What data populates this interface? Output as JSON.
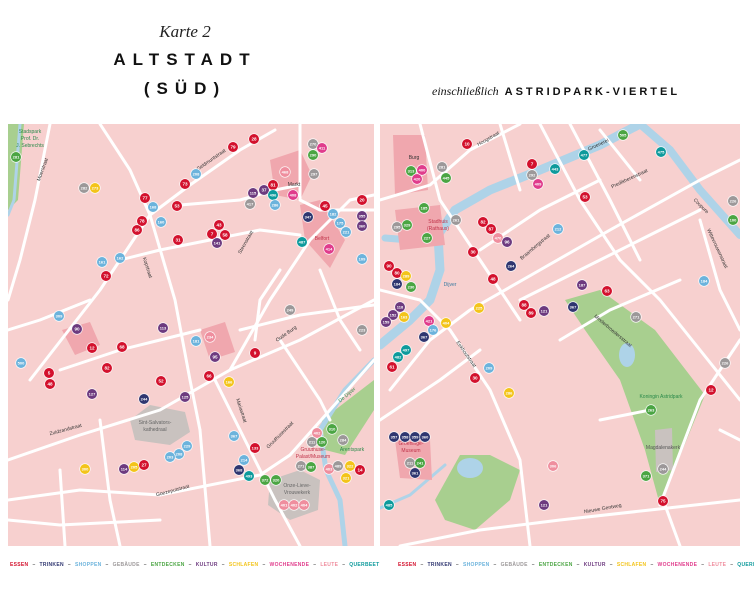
{
  "header": {
    "map_number": "Karte 2",
    "title_line1": "ALTSTADT",
    "title_line2": "(SÜD)",
    "subtitle_prefix": "einschließlich",
    "subtitle_main": "ASTRIDPARK-VIERTEL"
  },
  "colors": {
    "map_bg": "#f7d0cf",
    "road": "#ffffff",
    "water": "#aed3e8",
    "park": "#a8cf8f",
    "building": "#c9c2bf",
    "landmark": "#f0a7ae"
  },
  "categories": {
    "essen": {
      "label": "ESSEN",
      "color": "#d3112d"
    },
    "trinken": {
      "label": "TRINKEN",
      "color": "#2f3670"
    },
    "shoppen": {
      "label": "SHOPPEN",
      "color": "#6cb3dc"
    },
    "gebaeude": {
      "label": "GEBÄUDE",
      "color": "#9c9899"
    },
    "entdecken": {
      "label": "ENTDECKEN",
      "color": "#4ba543"
    },
    "kultur": {
      "label": "KULTUR",
      "color": "#6d3a7f"
    },
    "schlafen": {
      "label": "SCHLAFEN",
      "color": "#f3c41a"
    },
    "wochenende": {
      "label": "WOCHENENDE",
      "color": "#e03c8c"
    },
    "leute": {
      "label": "LEUTE",
      "color": "#ef8e9e"
    },
    "querbeet": {
      "label": "QUERBEET",
      "color": "#0e9a9c"
    }
  },
  "legend_order": [
    "essen",
    "trinken",
    "shoppen",
    "gebaeude",
    "entdecken",
    "kultur",
    "schlafen",
    "wochenende",
    "leute",
    "querbeet"
  ],
  "left_labels": [
    "Stadspark",
    "Prof. Dr.",
    "J. Sebrechts",
    "Moerstraat",
    "Geldmuntstraat",
    "Markt",
    "Belfort",
    "Kopstraat",
    "Steenstraat",
    "Oude Burg",
    "Zuidzandstraat",
    "Sint-Salvators-",
    "kathedraal",
    "Mariastraat",
    "Gruuthusestraat",
    "Gruuthuse-",
    "Palast/Museum",
    "Arentspark",
    "De Dijver",
    "Onze-Lieve-",
    "Vrouwekerk",
    "Goezeputstraat"
  ],
  "right_labels": [
    "Burg",
    "Hoogstraat",
    "Groenerei",
    "Predikherenstraat",
    "Coupure",
    "Stadhuis",
    "(Rathaus)",
    "Braambergstraat",
    "Dijver",
    "Wittevrouwenstraat",
    "Minderbroedersstraat",
    "Eekhoutstraat",
    "Koningin Astridpark",
    "Magdalenakerk",
    "Groeninge-",
    "Museum",
    "Nieuwe Gentweg"
  ],
  "left_markers": [
    [
      "281",
      "entdecken"
    ],
    [
      "79",
      "essen"
    ],
    [
      "28",
      "essen"
    ],
    [
      "270",
      "gebaeude"
    ],
    [
      "411",
      "wochenende"
    ],
    [
      "290",
      "entdecken"
    ],
    [
      "468",
      "leute"
    ],
    [
      "297",
      "gebaeude"
    ],
    [
      "73",
      "essen"
    ],
    [
      "208",
      "shoppen"
    ],
    [
      "282",
      "gebaeude"
    ],
    [
      "273",
      "schlafen"
    ],
    [
      "77",
      "essen"
    ],
    [
      "168",
      "shoppen"
    ],
    [
      "53",
      "essen"
    ],
    [
      "115",
      "kultur"
    ],
    [
      "37",
      "kultur"
    ],
    [
      "81",
      "essen"
    ],
    [
      "496",
      "querbeet"
    ],
    [
      "417",
      "gebaeude"
    ],
    [
      "286",
      "shoppen"
    ],
    [
      "408",
      "wochenende"
    ],
    [
      "45",
      "essen"
    ],
    [
      "20",
      "essen"
    ],
    [
      "347",
      "trinken"
    ],
    [
      "182",
      "shoppen"
    ],
    [
      "175",
      "shoppen"
    ],
    [
      "221",
      "shoppen"
    ],
    [
      "355",
      "kultur"
    ],
    [
      "360",
      "kultur"
    ],
    [
      "78",
      "essen"
    ],
    [
      "86",
      "essen"
    ],
    [
      "160",
      "shoppen"
    ],
    [
      "43",
      "essen"
    ],
    [
      "7",
      "essen"
    ],
    [
      "58",
      "essen"
    ],
    [
      "141",
      "kultur"
    ],
    [
      "31",
      "essen"
    ],
    [
      "487",
      "querbeet"
    ],
    [
      "414",
      "wochenende"
    ],
    [
      "109",
      "shoppen"
    ],
    [
      "161",
      "shoppen"
    ],
    [
      "162",
      "shoppen"
    ],
    [
      "72",
      "essen"
    ],
    [
      "309",
      "shoppen"
    ],
    [
      "249",
      "gebaeude"
    ],
    [
      "223",
      "gebaeude"
    ],
    [
      "90",
      "kultur"
    ],
    [
      "113",
      "kultur"
    ],
    [
      "181",
      "shoppen"
    ],
    [
      "234",
      "leute"
    ],
    [
      "12",
      "essen"
    ],
    [
      "68",
      "essen"
    ],
    [
      "500",
      "shoppen"
    ],
    [
      "5",
      "essen"
    ],
    [
      "48",
      "essen"
    ],
    [
      "82",
      "essen"
    ],
    [
      "95",
      "kultur"
    ],
    [
      "9",
      "essen"
    ],
    [
      "127",
      "kultur"
    ],
    [
      "52",
      "essen"
    ],
    [
      "66",
      "essen"
    ],
    [
      "166",
      "schlafen"
    ],
    [
      "244",
      "trinken"
    ],
    [
      "125",
      "kultur"
    ],
    [
      "367",
      "shoppen"
    ],
    [
      "133",
      "essen"
    ],
    [
      "229",
      "shoppen"
    ],
    [
      "208",
      "shoppen"
    ],
    [
      "203",
      "shoppen"
    ],
    [
      "300",
      "schlafen"
    ],
    [
      "114",
      "kultur"
    ],
    [
      "205",
      "schlafen"
    ],
    [
      "27",
      "essen"
    ],
    [
      "214",
      "shoppen"
    ],
    [
      "368",
      "trinken"
    ],
    [
      "493",
      "querbeet"
    ],
    [
      "372",
      "entdecken"
    ],
    [
      "320",
      "entdecken"
    ],
    [
      "310",
      "entdecken"
    ],
    [
      "402",
      "leute"
    ],
    [
      "284",
      "gebaeude"
    ],
    [
      "211",
      "gebaeude"
    ],
    [
      "120",
      "entdecken"
    ],
    [
      "271",
      "gebaeude"
    ],
    [
      "387",
      "entdecken"
    ],
    [
      "403",
      "leute"
    ],
    [
      "489",
      "gebaeude"
    ],
    [
      "322",
      "schlafen"
    ],
    [
      "14",
      "essen"
    ],
    [
      "321",
      "schlafen"
    ],
    [
      "401",
      "leute"
    ],
    [
      "402",
      "leute"
    ],
    [
      "404",
      "leute"
    ]
  ],
  "right_markers": [
    [
      "10",
      "essen"
    ],
    [
      "7",
      "essen"
    ],
    [
      "443",
      "querbeet"
    ],
    [
      "477",
      "querbeet"
    ],
    [
      "505",
      "entdecken"
    ],
    [
      "475",
      "querbeet"
    ],
    [
      "313",
      "entdecken"
    ],
    [
      "400",
      "wochenende"
    ],
    [
      "420",
      "wochenende"
    ],
    [
      "281",
      "gebaeude"
    ],
    [
      "445",
      "entdecken"
    ],
    [
      "292",
      "gebaeude"
    ],
    [
      "409",
      "wochenende"
    ],
    [
      "53",
      "essen"
    ],
    [
      "226",
      "gebaeude"
    ],
    [
      "100",
      "entdecken"
    ],
    [
      "185",
      "entdecken"
    ],
    [
      "261",
      "gebaeude"
    ],
    [
      "329",
      "entdecken"
    ],
    [
      "295",
      "gebaeude"
    ],
    [
      "227",
      "entdecken"
    ],
    [
      "82",
      "essen"
    ],
    [
      "87",
      "essen"
    ],
    [
      "470",
      "leute"
    ],
    [
      "96",
      "kultur"
    ],
    [
      "212",
      "shoppen"
    ],
    [
      "30",
      "essen"
    ],
    [
      "264",
      "trinken"
    ],
    [
      "48",
      "essen"
    ],
    [
      "90",
      "essen"
    ],
    [
      "80",
      "essen"
    ],
    [
      "289",
      "schlafen"
    ],
    [
      "184",
      "trinken"
    ],
    [
      "230",
      "entdecken"
    ],
    [
      "187",
      "kultur"
    ],
    [
      "63",
      "essen"
    ],
    [
      "184",
      "shoppen"
    ],
    [
      "118",
      "kultur"
    ],
    [
      "152",
      "kultur"
    ],
    [
      "163",
      "schlafen"
    ],
    [
      "159",
      "kultur"
    ],
    [
      "225",
      "schlafen"
    ],
    [
      "88",
      "essen"
    ],
    [
      "89",
      "essen"
    ],
    [
      "121",
      "kultur"
    ],
    [
      "367",
      "trinken"
    ],
    [
      "271",
      "gebaeude"
    ],
    [
      "421",
      "wochenende"
    ],
    [
      "404",
      "schlafen"
    ],
    [
      "176",
      "shoppen"
    ],
    [
      "367",
      "trinken"
    ],
    [
      "497",
      "querbeet"
    ],
    [
      "482",
      "querbeet"
    ],
    [
      "61",
      "essen"
    ],
    [
      "209",
      "shoppen"
    ],
    [
      "30",
      "essen"
    ],
    [
      "286",
      "schlafen"
    ],
    [
      "226",
      "gebaeude"
    ],
    [
      "12",
      "essen"
    ],
    [
      "263",
      "entdecken"
    ],
    [
      "357",
      "trinken"
    ],
    [
      "358",
      "trinken"
    ],
    [
      "359",
      "trinken"
    ],
    [
      "360",
      "trinken"
    ],
    [
      "211",
      "gebaeude"
    ],
    [
      "241",
      "entdecken"
    ],
    [
      "361",
      "trinken"
    ],
    [
      "306",
      "leute"
    ],
    [
      "244",
      "gebaeude"
    ],
    [
      "371",
      "entdecken"
    ],
    [
      "485",
      "querbeet"
    ],
    [
      "121",
      "kultur"
    ],
    [
      "75",
      "essen"
    ]
  ]
}
